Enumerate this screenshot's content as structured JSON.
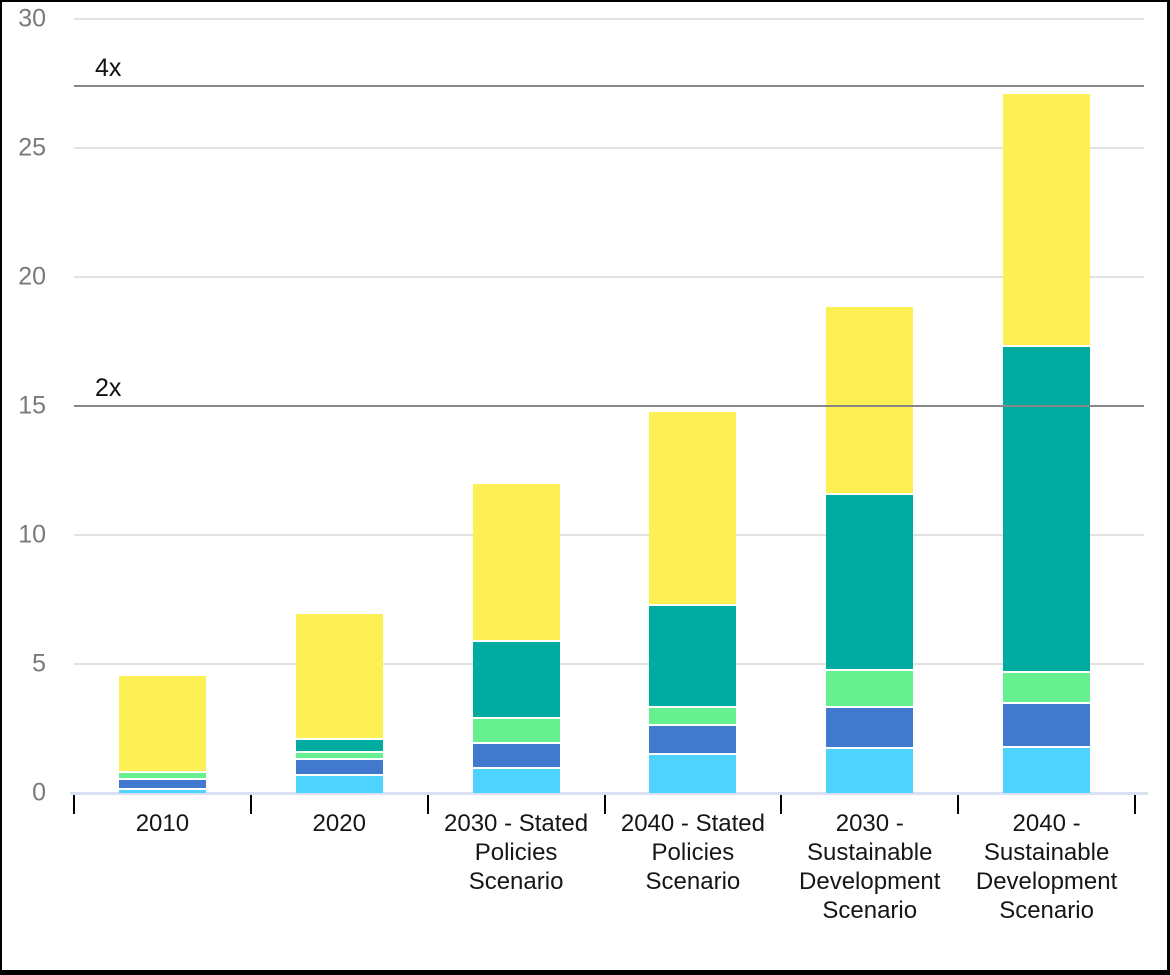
{
  "chart_data": {
    "type": "bar",
    "stacked": true,
    "categories": [
      "2010",
      "2020",
      "2030 - Stated Policies Scenario",
      "2040 - Stated Policies Scenario",
      "2030 - Sustainable Development Scenario",
      "2040 - Sustainable Development Scenario"
    ],
    "series": [
      {
        "name": "light-blue",
        "color": "#4dd3fd",
        "values": [
          0.2,
          0.75,
          1.0,
          1.54,
          1.78,
          1.83
        ]
      },
      {
        "name": "blue",
        "color": "#4179ce",
        "values": [
          0.4,
          0.6,
          0.97,
          1.13,
          1.58,
          1.71
        ]
      },
      {
        "name": "light-green",
        "color": "#67f08f",
        "values": [
          0.25,
          0.27,
          0.97,
          0.71,
          1.45,
          1.2
        ]
      },
      {
        "name": "teal",
        "color": "#00aba0",
        "values": [
          0,
          0.53,
          2.98,
          3.93,
          6.83,
          12.62
        ]
      },
      {
        "name": "yellow",
        "color": "#fdf055",
        "values": [
          3.75,
          4.85,
          6.13,
          7.54,
          7.28,
          9.81
        ]
      }
    ],
    "ylim": [
      0,
      30
    ],
    "yticks": [
      0,
      5,
      10,
      15,
      20,
      25,
      30
    ],
    "reference_lines": [
      {
        "label": "2x",
        "value": 15.0
      },
      {
        "label": "4x",
        "value": 27.4
      }
    ],
    "xlabel": "",
    "ylabel": "",
    "grid": true,
    "legend": "none"
  },
  "palette": {
    "gridline": "#e2e2e2",
    "reference_line": "#878787",
    "x_axis_line": "#d9e0f2",
    "y_tick_label": "#7a7a7a",
    "x_tick_label": "#161616",
    "frame_border": "#000000"
  }
}
